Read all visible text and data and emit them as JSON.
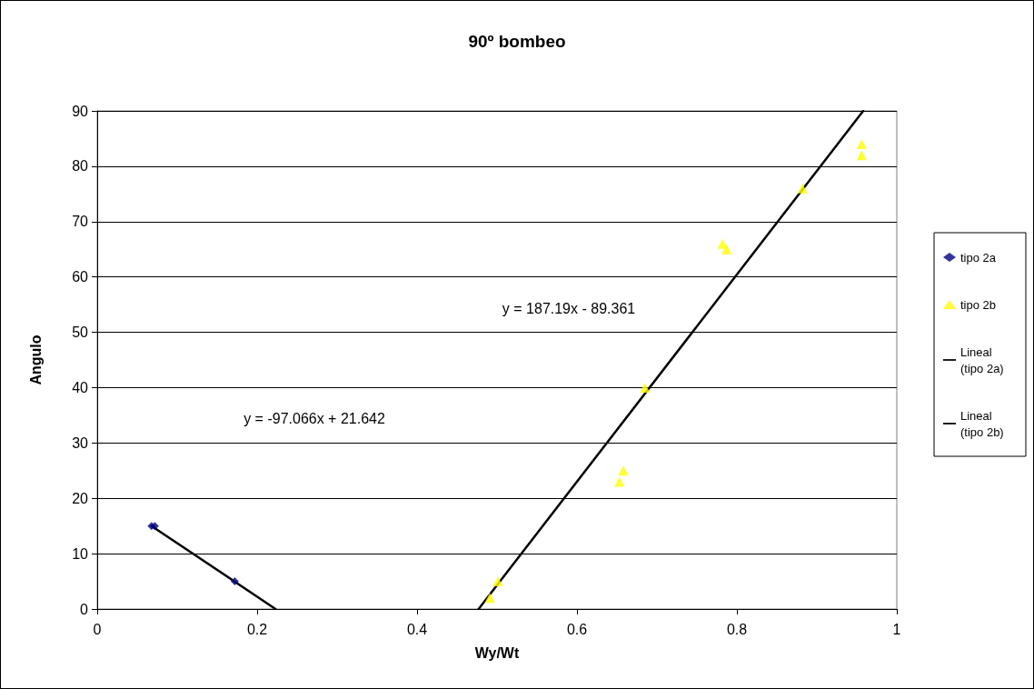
{
  "chart_data": {
    "type": "scatter",
    "title": "90º bombeo",
    "xlabel": "Wy/Wt",
    "ylabel": "Angulo",
    "xlim": [
      0,
      1
    ],
    "xticks": [
      0,
      0.2,
      0.4,
      0.6,
      0.8,
      1
    ],
    "ylim": [
      0,
      90
    ],
    "yticks": [
      0,
      10,
      20,
      30,
      40,
      50,
      60,
      70,
      80,
      90
    ],
    "grid": "y",
    "legend": "right",
    "series": [
      {
        "name": "tipo 2a",
        "color": "#000080",
        "marker": "diamond",
        "x": [
          0.068,
          0.072,
          0.172
        ],
        "values": [
          15,
          15,
          5
        ]
      },
      {
        "name": "tipo 2b",
        "color": "#ffff00",
        "marker": "triangle",
        "x": [
          0.491,
          0.501,
          0.653,
          0.658,
          0.685,
          0.782,
          0.787,
          0.882,
          0.956,
          0.956
        ],
        "values": [
          2,
          5,
          23,
          25,
          40,
          66,
          65,
          76,
          84,
          82
        ]
      },
      {
        "name": "Lineal (tipo 2a)",
        "type": "line",
        "color": "#000000",
        "marker": "none",
        "line_style": "solid",
        "x": [
          0.068,
          0.223
        ],
        "values": [
          15,
          0
        ]
      },
      {
        "name": "Lineal (tipo 2b)",
        "type": "line",
        "color": "#000000",
        "marker": "none",
        "line_style": "solid",
        "x": [
          0.477,
          0.958
        ],
        "values": [
          0,
          90
        ]
      }
    ],
    "annotations": [
      "y = 187.19x - 89.361",
      "y = -97.066x + 21.642"
    ]
  }
}
